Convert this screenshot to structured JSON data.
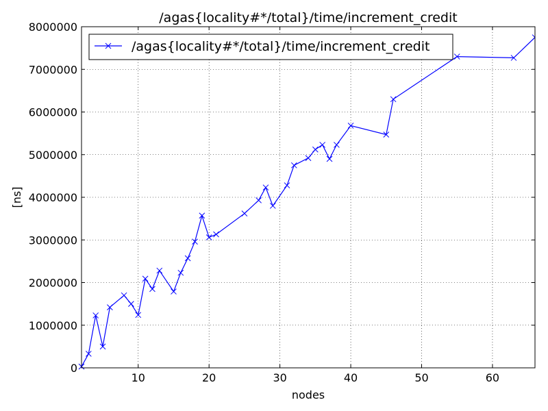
{
  "chart_data": {
    "type": "line",
    "title": "/agas{locality#*/total}/time/increment_credit",
    "xlabel": "nodes",
    "ylabel": "[ns]",
    "xlim": [
      2,
      66
    ],
    "ylim": [
      0,
      8000000
    ],
    "x_ticks": [
      10,
      20,
      30,
      40,
      50,
      60
    ],
    "x_tick_labels": [
      "10",
      "20",
      "30",
      "40",
      "50",
      "60"
    ],
    "y_ticks": [
      0,
      1000000,
      2000000,
      3000000,
      4000000,
      5000000,
      6000000,
      7000000,
      8000000
    ],
    "y_tick_labels": [
      "0",
      "1000000",
      "2000000",
      "3000000",
      "4000000",
      "5000000",
      "6000000",
      "7000000",
      "8000000"
    ],
    "grid": true,
    "legend_position": "top-left",
    "series": [
      {
        "name": "/agas{locality#*/total}/time/increment_credit",
        "color": "#0000ff",
        "marker": "x",
        "x": [
          2,
          3,
          4,
          5,
          6,
          8,
          9,
          10,
          11,
          12,
          13,
          15,
          16,
          17,
          18,
          19,
          20,
          21,
          25,
          27,
          28,
          29,
          31,
          32,
          34,
          35,
          36,
          37,
          38,
          40,
          45,
          46,
          55,
          63,
          66
        ],
        "y": [
          30000,
          330000,
          1230000,
          500000,
          1420000,
          1700000,
          1500000,
          1240000,
          2090000,
          1850000,
          2280000,
          1790000,
          2230000,
          2570000,
          2960000,
          3570000,
          3060000,
          3130000,
          3620000,
          3930000,
          4230000,
          3800000,
          4280000,
          4750000,
          4920000,
          5120000,
          5230000,
          4900000,
          5230000,
          5680000,
          5470000,
          6300000,
          7300000,
          7270000,
          7750000
        ]
      }
    ]
  }
}
